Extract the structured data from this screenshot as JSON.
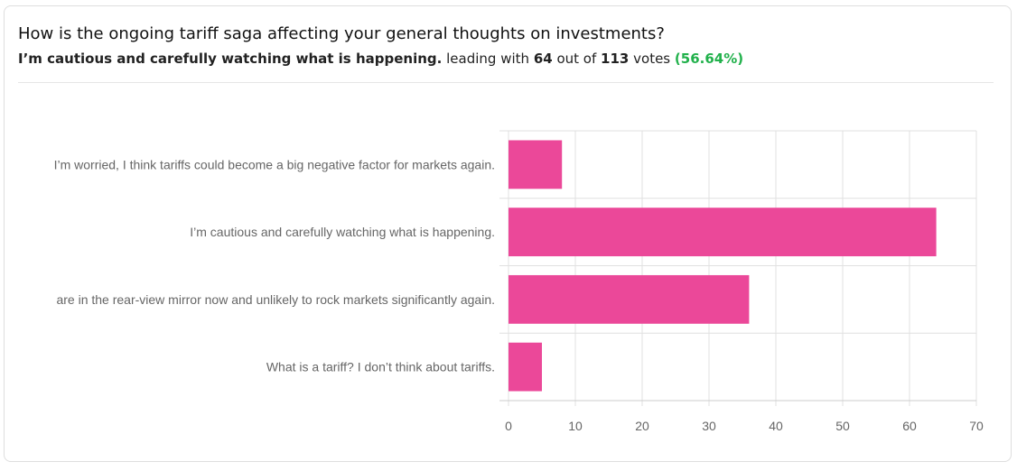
{
  "header": {
    "question": "How is the ongoing tariff saga affecting your general thoughts on investments?",
    "leading_answer": "I’m cautious and carefully watching what is happening.",
    "leading_with": "leading with",
    "leading_votes": "64",
    "out_of": "out of",
    "total_votes": "113",
    "votes_word": "votes",
    "percent": "(56.64%)"
  },
  "chart_data": {
    "type": "bar",
    "orientation": "horizontal",
    "categories": [
      "I’m worried, I think tariffs could become a big negative factor for markets again.",
      "I’m cautious and carefully watching what is happening.",
      "are in the rear-view mirror now and unlikely to rock markets significantly again.",
      "What is a tariff? I don’t think about tariffs."
    ],
    "values": [
      8,
      64,
      36,
      5
    ],
    "xlim": [
      0,
      70
    ],
    "xticks": [
      0,
      10,
      20,
      30,
      40,
      50,
      60,
      70
    ],
    "grid": true,
    "bar_color": "#eb4899"
  }
}
